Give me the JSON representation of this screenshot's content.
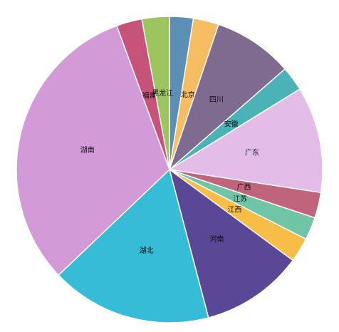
{
  "chart_data": {
    "type": "pie",
    "title": "",
    "start": "top",
    "direction": "clockwise",
    "slices": [
      {
        "label": "",
        "value": 2.5,
        "color": "#5b8fb6",
        "show_label": false
      },
      {
        "label": "北京",
        "value": 2.7,
        "color": "#f7bd63",
        "show_label": true
      },
      {
        "label": "四川",
        "value": 8.4,
        "color": "#7e6b8f",
        "show_label": true
      },
      {
        "label": "安徽",
        "value": 2.6,
        "color": "#4bb2b8",
        "show_label": true
      },
      {
        "label": "广东",
        "value": 11.2,
        "color": "#e3bce8",
        "show_label": true
      },
      {
        "label": "广西",
        "value": 2.7,
        "color": "#bf647a",
        "show_label": true
      },
      {
        "label": "江苏",
        "value": 2.4,
        "color": "#6fc5a6",
        "show_label": true
      },
      {
        "label": "江西",
        "value": 2.6,
        "color": "#f7bd46",
        "show_label": true
      },
      {
        "label": "河南",
        "value": 10.8,
        "color": "#5a4896",
        "show_label": true
      },
      {
        "label": "湖北",
        "value": 17.0,
        "color": "#37bcd7",
        "show_label": true
      },
      {
        "label": "湖南",
        "value": 31.5,
        "color": "#d39ad8",
        "show_label": true
      },
      {
        "label": "福建",
        "value": 2.7,
        "color": "#c7537b",
        "show_label": true
      },
      {
        "label": "黑龙江",
        "value": 2.9,
        "color": "#9cc560",
        "show_label": true
      }
    ]
  }
}
